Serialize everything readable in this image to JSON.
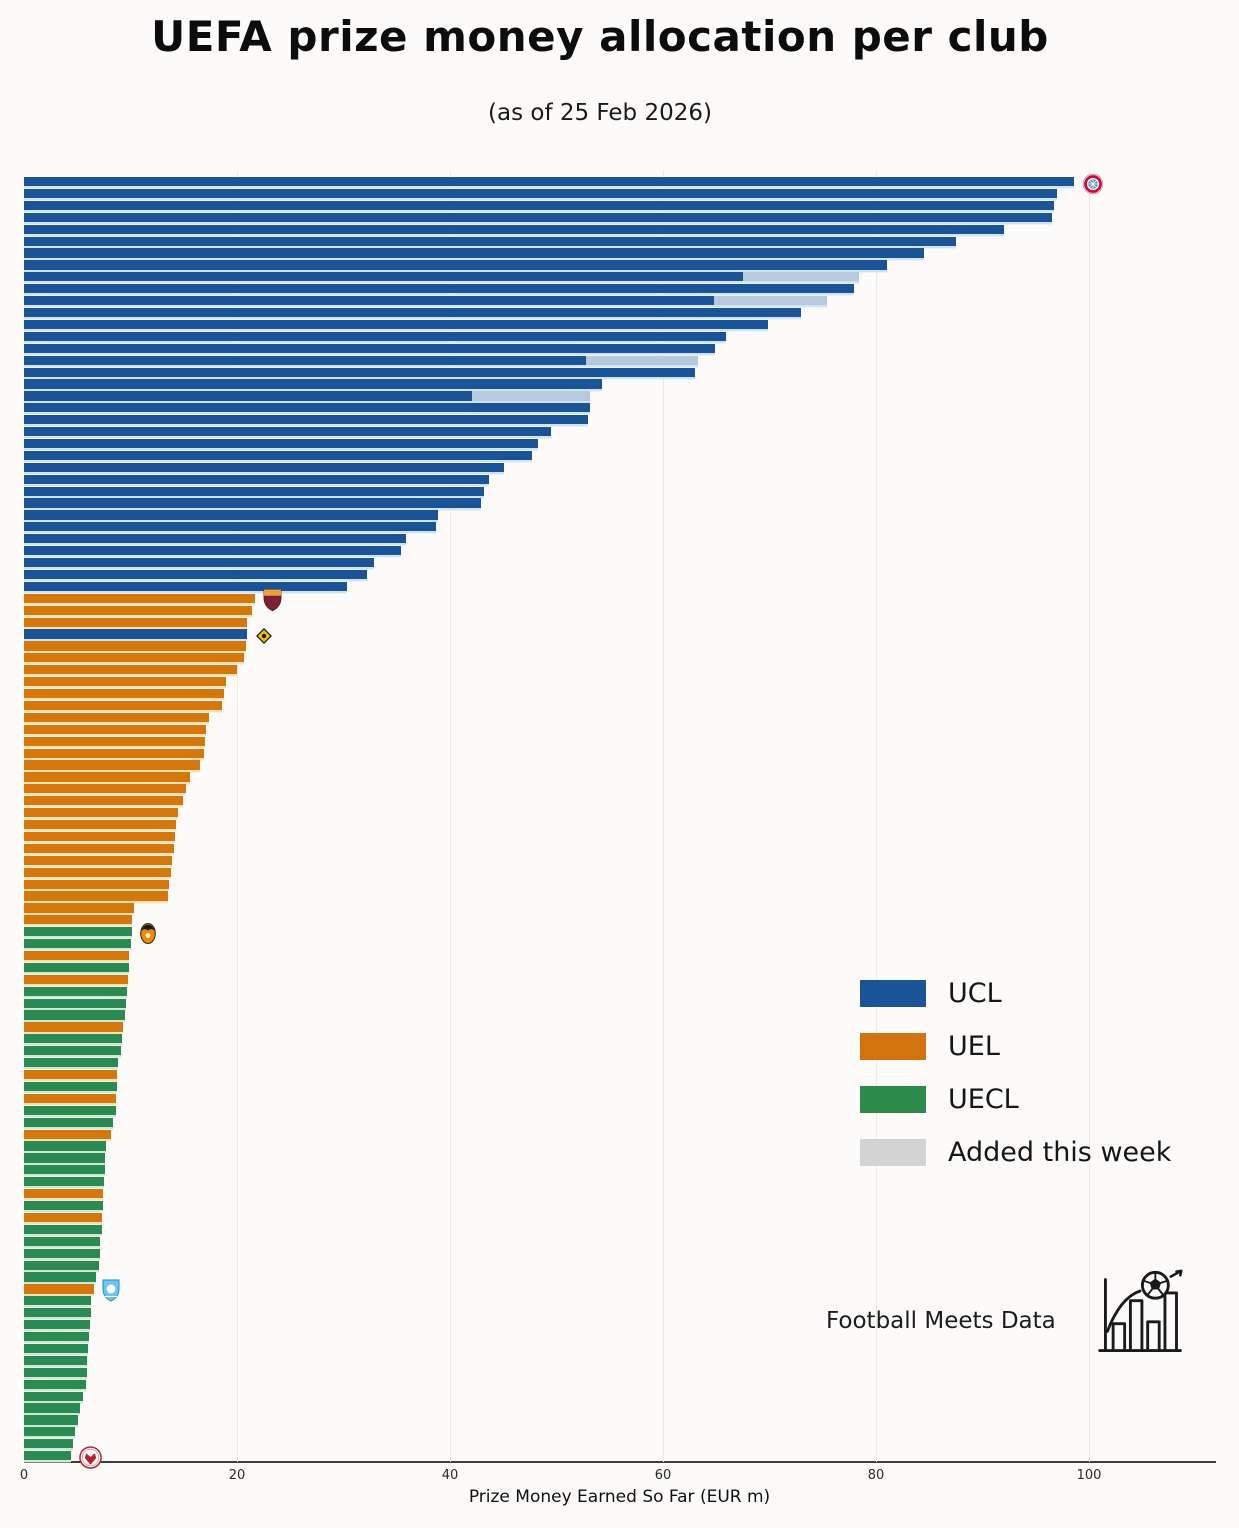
{
  "title": "UEFA prize money allocation per club",
  "subtitle": "(as of 25 Feb 2026)",
  "branding": {
    "name": "Football Meets Data",
    "logo_icon": "bar-chart-football-arrow-icon"
  },
  "chart_data": {
    "type": "bar",
    "orientation": "horizontal",
    "title": "UEFA prize money allocation per club",
    "subtitle": "(as of 25 Feb 2026)",
    "xlabel": "Prize Money Earned So Far (EUR m)",
    "x_ticks": [
      0,
      20,
      40,
      60,
      80,
      100
    ],
    "xlim": [
      0,
      112
    ],
    "grid": "vertical-faint",
    "legend_position": "right-middle",
    "legend": [
      {
        "label": "UCL",
        "color": "#1a5396"
      },
      {
        "label": "UEL",
        "color": "#d2730e"
      },
      {
        "label": "UECL",
        "color": "#2c8a4b"
      },
      {
        "label": "Added this week",
        "color": "#d3d3d3"
      }
    ],
    "colors": {
      "UCL": "#1a5396",
      "UEL": "#d4780e",
      "UECL": "#2a8a52",
      "added_segment": "#b7c9dd",
      "added_legend": "#d3d3d3"
    },
    "separator_tints": {
      "UCL": "#cfe3f5",
      "UEL": "#f2e2b8",
      "UECL": "#cfe9d6"
    },
    "logo_icons": [
      "bayern-crest",
      "roma-crest",
      "kairat-crest",
      "shakhtar-crest",
      "malmo-crest",
      "red-white-crest"
    ],
    "bars": [
      {
        "competition": "UCL",
        "value": 98.6,
        "logo": "bayern-crest"
      },
      {
        "competition": "UCL",
        "value": 97.0
      },
      {
        "competition": "UCL",
        "value": 96.7
      },
      {
        "competition": "UCL",
        "value": 96.5
      },
      {
        "competition": "UCL",
        "value": 92.0
      },
      {
        "competition": "UCL",
        "value": 87.5
      },
      {
        "competition": "UCL",
        "value": 84.5
      },
      {
        "competition": "UCL",
        "value": 81.0
      },
      {
        "competition": "UCL",
        "value": 67.5,
        "added": 10.9
      },
      {
        "competition": "UCL",
        "value": 77.9
      },
      {
        "competition": "UCL",
        "value": 64.8,
        "added": 10.6
      },
      {
        "competition": "UCL",
        "value": 73.0
      },
      {
        "competition": "UCL",
        "value": 69.9
      },
      {
        "competition": "UCL",
        "value": 65.9
      },
      {
        "competition": "UCL",
        "value": 64.9
      },
      {
        "competition": "UCL",
        "value": 52.8,
        "added": 10.5
      },
      {
        "competition": "UCL",
        "value": 63.0
      },
      {
        "competition": "UCL",
        "value": 54.3
      },
      {
        "competition": "UCL",
        "value": 42.1,
        "added": 11.0
      },
      {
        "competition": "UCL",
        "value": 53.1
      },
      {
        "competition": "UCL",
        "value": 53.0
      },
      {
        "competition": "UCL",
        "value": 49.5
      },
      {
        "competition": "UCL",
        "value": 48.3
      },
      {
        "competition": "UCL",
        "value": 47.7
      },
      {
        "competition": "UCL",
        "value": 45.1
      },
      {
        "competition": "UCL",
        "value": 43.7
      },
      {
        "competition": "UCL",
        "value": 43.2
      },
      {
        "competition": "UCL",
        "value": 42.9
      },
      {
        "competition": "UCL",
        "value": 38.9
      },
      {
        "competition": "UCL",
        "value": 38.7
      },
      {
        "competition": "UCL",
        "value": 35.9
      },
      {
        "competition": "UCL",
        "value": 35.4
      },
      {
        "competition": "UCL",
        "value": 32.9
      },
      {
        "competition": "UCL",
        "value": 32.2
      },
      {
        "competition": "UCL",
        "value": 30.3
      },
      {
        "competition": "UEL",
        "value": 21.7,
        "logo": "roma-crest"
      },
      {
        "competition": "UEL",
        "value": 21.4
      },
      {
        "competition": "UEL",
        "value": 20.9
      },
      {
        "competition": "UCL",
        "value": 20.9,
        "logo": "kairat-crest"
      },
      {
        "competition": "UEL",
        "value": 20.8
      },
      {
        "competition": "UEL",
        "value": 20.7
      },
      {
        "competition": "UEL",
        "value": 20.0
      },
      {
        "competition": "UEL",
        "value": 19.0
      },
      {
        "competition": "UEL",
        "value": 18.8
      },
      {
        "competition": "UEL",
        "value": 18.6
      },
      {
        "competition": "UEL",
        "value": 17.4
      },
      {
        "competition": "UEL",
        "value": 17.1
      },
      {
        "competition": "UEL",
        "value": 17.0
      },
      {
        "competition": "UEL",
        "value": 16.9
      },
      {
        "competition": "UEL",
        "value": 16.5
      },
      {
        "competition": "UEL",
        "value": 15.6
      },
      {
        "competition": "UEL",
        "value": 15.2
      },
      {
        "competition": "UEL",
        "value": 14.9
      },
      {
        "competition": "UEL",
        "value": 14.5
      },
      {
        "competition": "UEL",
        "value": 14.3
      },
      {
        "competition": "UEL",
        "value": 14.2
      },
      {
        "competition": "UEL",
        "value": 14.1
      },
      {
        "competition": "UEL",
        "value": 13.9
      },
      {
        "competition": "UEL",
        "value": 13.8
      },
      {
        "competition": "UEL",
        "value": 13.6
      },
      {
        "competition": "UEL",
        "value": 13.5
      },
      {
        "competition": "UEL",
        "value": 10.3
      },
      {
        "competition": "UEL",
        "value": 10.1
      },
      {
        "competition": "UECL",
        "value": 10.1,
        "logo": "shakhtar-crest"
      },
      {
        "competition": "UECL",
        "value": 10.0
      },
      {
        "competition": "UEL",
        "value": 9.9
      },
      {
        "competition": "UECL",
        "value": 9.9
      },
      {
        "competition": "UEL",
        "value": 9.8
      },
      {
        "competition": "UECL",
        "value": 9.7
      },
      {
        "competition": "UECL",
        "value": 9.6
      },
      {
        "competition": "UECL",
        "value": 9.5
      },
      {
        "competition": "UEL",
        "value": 9.3
      },
      {
        "competition": "UECL",
        "value": 9.2
      },
      {
        "competition": "UECL",
        "value": 9.1
      },
      {
        "competition": "UECL",
        "value": 8.8
      },
      {
        "competition": "UEL",
        "value": 8.7
      },
      {
        "competition": "UECL",
        "value": 8.7
      },
      {
        "competition": "UEL",
        "value": 8.6
      },
      {
        "competition": "UECL",
        "value": 8.6
      },
      {
        "competition": "UECL",
        "value": 8.4
      },
      {
        "competition": "UEL",
        "value": 8.2
      },
      {
        "competition": "UECL",
        "value": 7.7
      },
      {
        "competition": "UECL",
        "value": 7.6
      },
      {
        "competition": "UECL",
        "value": 7.6
      },
      {
        "competition": "UECL",
        "value": 7.5
      },
      {
        "competition": "UEL",
        "value": 7.4
      },
      {
        "competition": "UECL",
        "value": 7.4
      },
      {
        "competition": "UEL",
        "value": 7.3
      },
      {
        "competition": "UECL",
        "value": 7.3
      },
      {
        "competition": "UECL",
        "value": 7.1
      },
      {
        "competition": "UECL",
        "value": 7.1
      },
      {
        "competition": "UECL",
        "value": 7.0
      },
      {
        "competition": "UECL",
        "value": 6.8
      },
      {
        "competition": "UEL",
        "value": 6.6,
        "logo": "malmo-crest"
      },
      {
        "competition": "UECL",
        "value": 6.3
      },
      {
        "competition": "UECL",
        "value": 6.3
      },
      {
        "competition": "UECL",
        "value": 6.2
      },
      {
        "competition": "UECL",
        "value": 6.1
      },
      {
        "competition": "UECL",
        "value": 6.0
      },
      {
        "competition": "UECL",
        "value": 5.9
      },
      {
        "competition": "UECL",
        "value": 5.9
      },
      {
        "competition": "UECL",
        "value": 5.8
      },
      {
        "competition": "UECL",
        "value": 5.5
      },
      {
        "competition": "UECL",
        "value": 5.3
      },
      {
        "competition": "UECL",
        "value": 5.1
      },
      {
        "competition": "UECL",
        "value": 4.8
      },
      {
        "competition": "UECL",
        "value": 4.6
      },
      {
        "competition": "UECL",
        "value": 4.4,
        "logo": "red-white-crest"
      }
    ]
  }
}
